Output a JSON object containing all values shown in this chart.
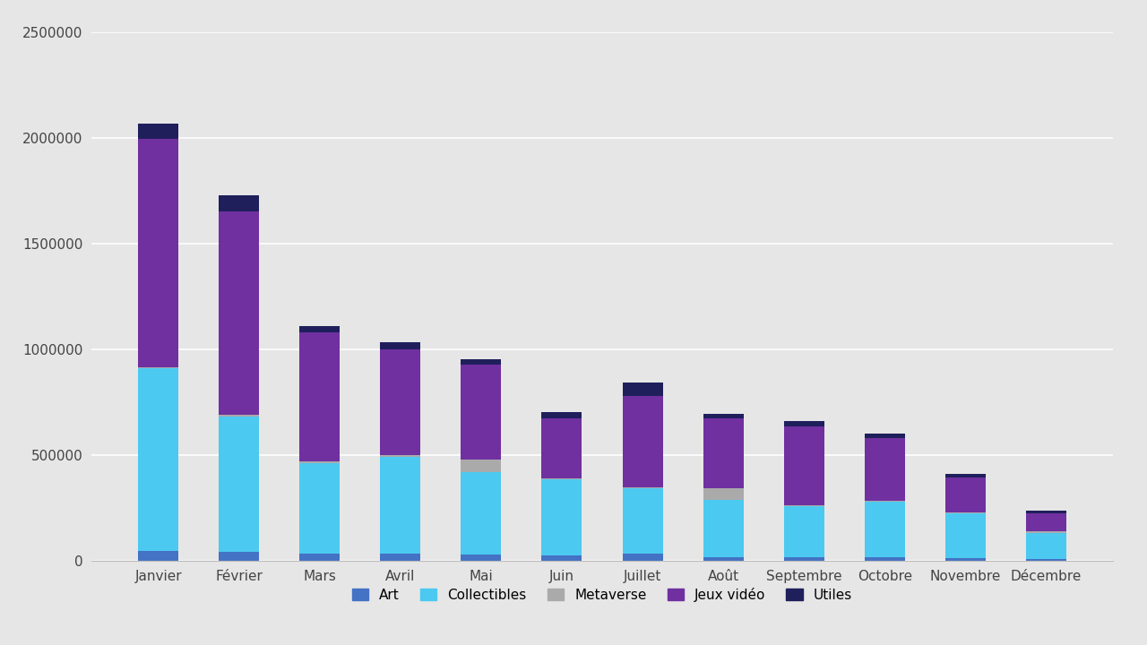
{
  "months": [
    "Janvier",
    "Février",
    "Mars",
    "Avril",
    "Mai",
    "Juin",
    "Juillet",
    "Août",
    "Septembre",
    "Octobre",
    "Novembre",
    "Décembre"
  ],
  "segments": {
    "Art": [
      50000,
      45000,
      35000,
      35000,
      30000,
      25000,
      35000,
      20000,
      20000,
      20000,
      15000,
      10000
    ],
    "Collectibles": [
      860000,
      640000,
      430000,
      460000,
      390000,
      360000,
      310000,
      270000,
      240000,
      260000,
      210000,
      125000
    ],
    "Metaverse": [
      8000,
      8000,
      6000,
      6000,
      60000,
      8000,
      6000,
      55000,
      6000,
      6000,
      6000,
      5000
    ],
    "Jeux vidéo": [
      1080000,
      960000,
      610000,
      500000,
      450000,
      280000,
      430000,
      330000,
      370000,
      295000,
      165000,
      85000
    ],
    "Utiles": [
      70000,
      75000,
      30000,
      35000,
      25000,
      30000,
      65000,
      20000,
      25000,
      20000,
      15000,
      15000
    ]
  },
  "colors": {
    "Art": "#4472C4",
    "Collectibles": "#4CC9F0",
    "Metaverse": "#AAAAAA",
    "Jeux vidéo": "#7030A0",
    "Utiles": "#1F1F5C"
  },
  "ylim": [
    0,
    2500000
  ],
  "yticks": [
    0,
    500000,
    1000000,
    1500000,
    2000000,
    2500000
  ],
  "background_color": "#E6E6E6",
  "legend_labels": [
    "Art",
    "Collectibles",
    "Metaverse",
    "Jeux vidéo",
    "Utiles"
  ]
}
